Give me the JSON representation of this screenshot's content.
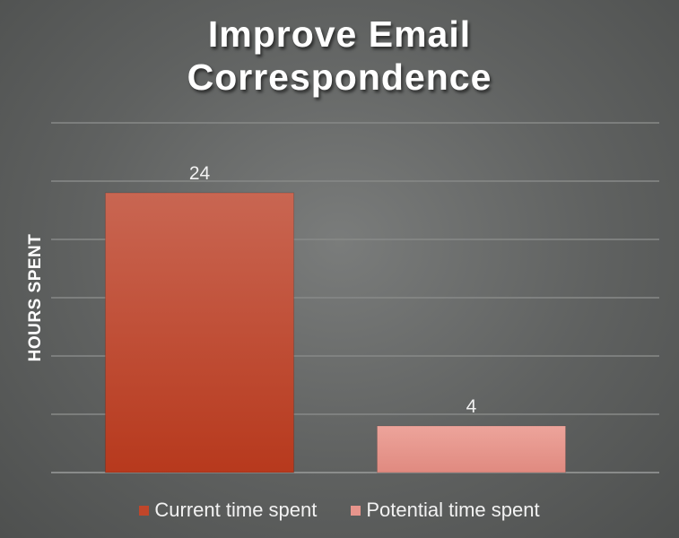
{
  "chart_data": {
    "type": "bar",
    "title_lines": [
      "Improve Email",
      "Correspondence"
    ],
    "ylabel": "HOURS SPENT",
    "xlabel": "",
    "ylim": [
      0,
      30
    ],
    "ytick_step": 5,
    "grid": true,
    "legend_position": "bottom",
    "categories": [
      "Current time spent",
      "Potential time spent"
    ],
    "values": [
      24,
      4
    ],
    "data_labels": [
      "24",
      "4"
    ],
    "colors": [
      "#c0462a",
      "#e8958c"
    ]
  }
}
